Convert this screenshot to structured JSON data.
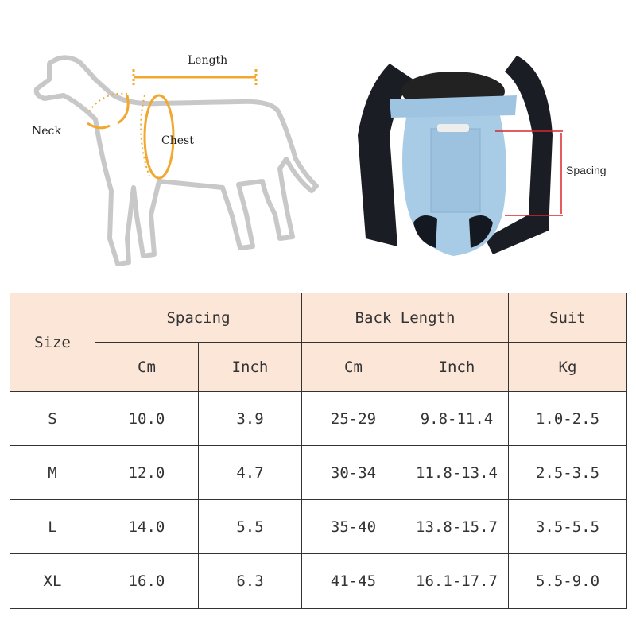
{
  "diagram": {
    "length_label": "Length",
    "neck_label": "Neck",
    "chest_label": "Chest",
    "spacing_label": "Spacing",
    "accent_color": "#f0a830",
    "spacing_line_color": "#d9262b"
  },
  "table": {
    "header_bg": "#fbe6d8",
    "size_header": "Size",
    "groups": [
      "Spacing",
      "Back Length",
      "Suit"
    ],
    "units": [
      "Cm",
      "Inch",
      "Cm",
      "Inch",
      "Kg"
    ],
    "rows": [
      [
        "S",
        "10.0",
        "3.9",
        "25-29",
        "9.8-11.4",
        "1.0-2.5"
      ],
      [
        "M",
        "12.0",
        "4.7",
        "30-34",
        "11.8-13.4",
        "2.5-3.5"
      ],
      [
        "L",
        "14.0",
        "5.5",
        "35-40",
        "13.8-15.7",
        "3.5-5.5"
      ],
      [
        "XL",
        "16.0",
        "6.3",
        "41-45",
        "16.1-17.7",
        "5.5-9.0"
      ]
    ]
  }
}
